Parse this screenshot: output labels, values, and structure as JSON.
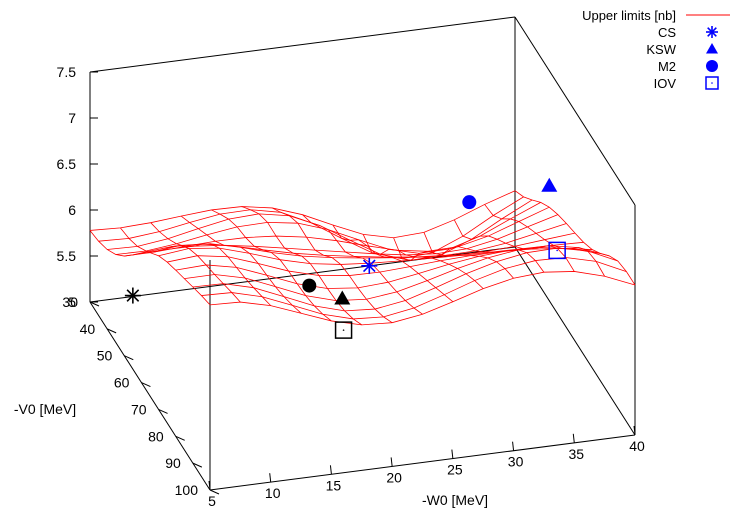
{
  "chart_data": {
    "type": "surface",
    "xlabel": "-W0 [MeV]",
    "ylabel": "-V0 [MeV]",
    "zlabel": "",
    "xlim": [
      5,
      40
    ],
    "ylim": [
      30,
      100
    ],
    "zlim": [
      5,
      7.5
    ],
    "x_ticks": [
      "5",
      "10",
      "15",
      "20",
      "25",
      "30",
      "35",
      "40"
    ],
    "y_ticks": [
      "30",
      "40",
      "50",
      "60",
      "70",
      "80",
      "90",
      "100"
    ],
    "z_ticks": [
      "5",
      "5.5",
      "6",
      "6.5",
      "7",
      "7.5"
    ],
    "surface": {
      "name": "Upper limits [nb]",
      "color": "#ff0000",
      "x_grid": [
        5,
        7.5,
        10,
        12.5,
        15,
        17.5,
        20,
        22.5,
        25,
        27.5,
        30,
        32.5,
        35,
        37.5,
        40
      ],
      "y_grid": [
        30,
        35,
        40,
        45,
        50,
        55,
        60,
        65,
        70,
        75,
        80,
        85,
        90,
        95,
        100
      ],
      "note_z": "approximate upper-limit surface values in data units"
    },
    "points": [
      {
        "name": "CS",
        "color": "#0000ff",
        "symbol": "asterisk",
        "x": 28,
        "y": 30,
        "z": 5.0
      },
      {
        "name": "KSW",
        "color": "#0000ff",
        "symbol": "triangle",
        "x": 40,
        "y": 50,
        "z": 6.25
      },
      {
        "name": "M2",
        "color": "#0000ff",
        "symbol": "circle",
        "x": 32,
        "y": 60,
        "z": 6.5
      },
      {
        "name": "IOV",
        "color": "#0000ff",
        "symbol": "square",
        "x": 35,
        "y": 90,
        "z": 6.8
      },
      {
        "name": "",
        "color": "#000000",
        "symbol": "asterisk",
        "x": 5,
        "y": 55,
        "z": 5.8
      },
      {
        "name": "",
        "color": "#000000",
        "symbol": "triangle",
        "x": 19,
        "y": 78,
        "z": 6.2
      },
      {
        "name": "",
        "color": "#000000",
        "symbol": "circle",
        "x": 16,
        "y": 80,
        "z": 6.45
      },
      {
        "name": "",
        "color": "#000000",
        "symbol": "square",
        "x": 16,
        "y": 100,
        "z": 6.55
      }
    ],
    "legend": {
      "placement": "top-right",
      "entries": [
        {
          "label": "Upper limits [nb]",
          "symbol": "line",
          "color": "#ff0000"
        },
        {
          "label": "CS",
          "symbol": "asterisk",
          "color": "#0000ff"
        },
        {
          "label": "KSW",
          "symbol": "triangle",
          "color": "#0000ff"
        },
        {
          "label": "M2",
          "symbol": "circle",
          "color": "#0000ff"
        },
        {
          "label": "IOV",
          "symbol": "square",
          "color": "#0000ff"
        }
      ]
    }
  }
}
